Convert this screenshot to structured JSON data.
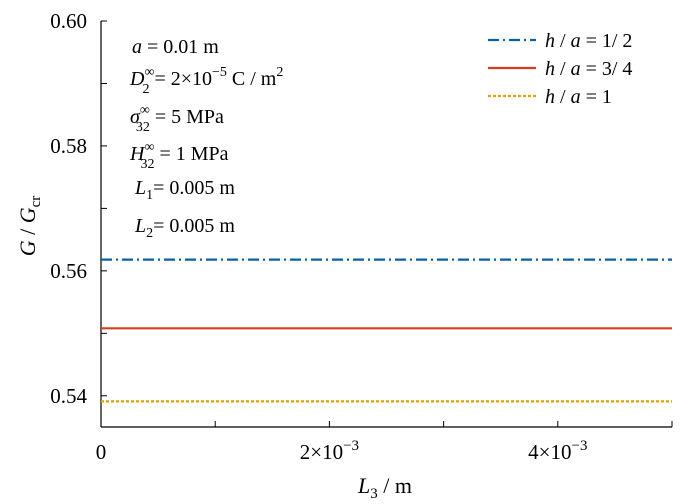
{
  "chart_data": {
    "type": "line",
    "xlabel": {
      "symbol": "L",
      "sub": "3",
      "unit": " / m"
    },
    "ylabel": {
      "symbol": "G",
      "sep": " / ",
      "symbol2": "G",
      "sub": "cr"
    },
    "xlim": [
      0,
      0.005
    ],
    "ylim": [
      0.535,
      0.6
    ],
    "x_ticks": [
      {
        "value": 0,
        "label": "0"
      },
      {
        "value": 0.002,
        "label": "2×10",
        "exp": "−3"
      },
      {
        "value": 0.004,
        "label": "4×10",
        "exp": "−3"
      }
    ],
    "y_ticks": [
      {
        "value": 0.54,
        "label": "0.54"
      },
      {
        "value": 0.56,
        "label": "0.56"
      },
      {
        "value": 0.58,
        "label": "0.58"
      },
      {
        "value": 0.6,
        "label": "0.60"
      }
    ],
    "series": [
      {
        "name": "h / a = 1/ 2",
        "color": "#0a5fa8",
        "dash": "dashdot",
        "x": [
          0,
          0.005
        ],
        "y": [
          0.5618,
          0.5618
        ]
      },
      {
        "name": "h / a = 3/ 4",
        "color": "#d8401c",
        "dash": "solid",
        "x": [
          0,
          0.005
        ],
        "y": [
          0.5508,
          0.5508
        ]
      },
      {
        "name": "h / a = 1",
        "color": "#e0a000",
        "dash": "dotted",
        "x": [
          0,
          0.005
        ],
        "y": [
          0.5391,
          0.5391
        ]
      }
    ],
    "legend_position": "top-right",
    "grid": false,
    "annotations": {
      "a": {
        "sym": "a",
        "eq": " = 0.01 m"
      },
      "D": {
        "sym": "D",
        "sub": "2",
        "sup": "∞",
        "eq": " = 2×10",
        "exp": "−5",
        "unit": " C / m",
        "unit_exp": "2"
      },
      "sigma": {
        "sym": "σ",
        "sub": "32",
        "sup": "∞",
        "eq": " = 5 MPa"
      },
      "H": {
        "sym": "H",
        "sub": "32",
        "sup": "∞",
        "eq": " = 1 MPa"
      },
      "L1": {
        "sym": "L",
        "sub": "1",
        "eq": "= 0.005 m"
      },
      "L2": {
        "sym": "L",
        "sub": "2",
        "eq": "= 0.005 m"
      }
    }
  }
}
